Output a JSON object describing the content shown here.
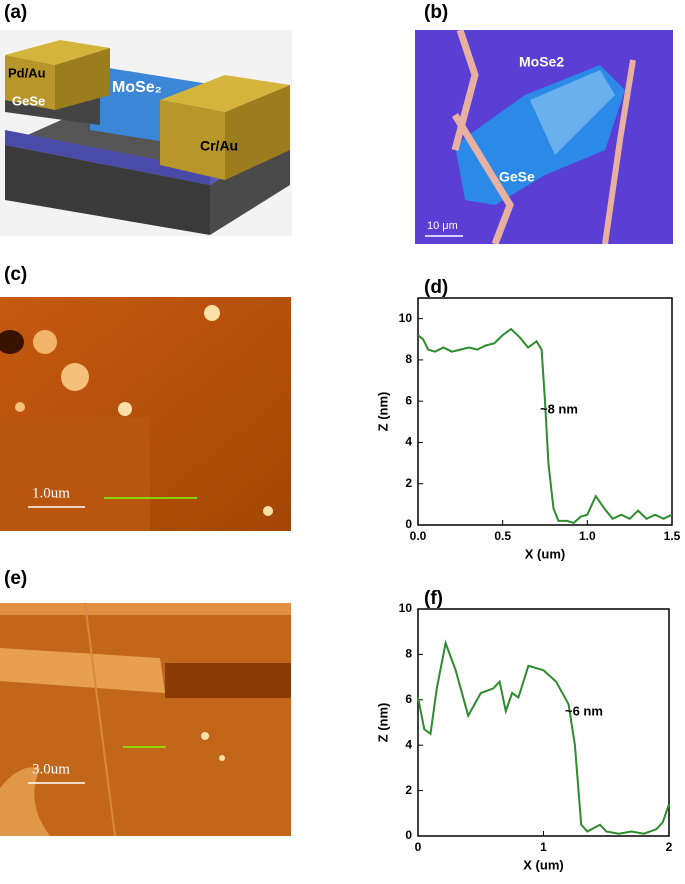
{
  "panels": {
    "a": {
      "label": "(a)",
      "texts": [
        "Pd/Au",
        "GeSe",
        "MoSe₂",
        "Cr/Au"
      ]
    },
    "b": {
      "label": "(b)",
      "texts": [
        "MoSe2",
        "GeSe",
        "10 μm"
      ]
    },
    "c": {
      "label": "(c)",
      "scale": "1.0um"
    },
    "e": {
      "label": "(e)",
      "scale": "3.0um"
    }
  },
  "chart_data": [
    {
      "type": "line",
      "label": "(d)",
      "xlabel": "X (um)",
      "ylabel": "Z (nm)",
      "annotation": "~8 nm",
      "color": "#2e8b2e",
      "x": [
        0,
        0.03,
        0.06,
        0.1,
        0.15,
        0.2,
        0.25,
        0.3,
        0.35,
        0.4,
        0.45,
        0.5,
        0.55,
        0.6,
        0.65,
        0.7,
        0.73,
        0.75,
        0.77,
        0.8,
        0.83,
        0.88,
        0.92,
        0.96,
        1.0,
        1.05,
        1.1,
        1.15,
        1.2,
        1.25,
        1.3,
        1.35,
        1.4,
        1.45,
        1.5
      ],
      "values": [
        9.2,
        9.0,
        8.5,
        8.4,
        8.6,
        8.4,
        8.5,
        8.6,
        8.5,
        8.7,
        8.8,
        9.2,
        9.5,
        9.1,
        8.6,
        8.9,
        8.5,
        6,
        3,
        0.8,
        0.2,
        0.2,
        0.1,
        0.4,
        0.5,
        1.4,
        0.8,
        0.3,
        0.5,
        0.3,
        0.7,
        0.3,
        0.5,
        0.3,
        0.5
      ],
      "xlim": [
        0,
        1.5
      ],
      "xticks": [
        {
          "value": 0,
          "label": "0.0"
        },
        0.5,
        {
          "value": 1,
          "label": "1.0"
        },
        1.5
      ],
      "ylim": [
        0,
        11
      ],
      "yticks": [
        0,
        2,
        4,
        6,
        8,
        10
      ]
    },
    {
      "type": "line",
      "label": "(f)",
      "xlabel": "X (um)",
      "ylabel": "Z (nm)",
      "annotation": "~6 nm",
      "color": "#2e8b2e",
      "x": [
        0,
        0.05,
        0.1,
        0.15,
        0.22,
        0.3,
        0.4,
        0.5,
        0.6,
        0.65,
        0.7,
        0.75,
        0.8,
        0.88,
        1.0,
        1.1,
        1.2,
        1.25,
        1.3,
        1.35,
        1.45,
        1.5,
        1.6,
        1.7,
        1.8,
        1.9,
        1.95,
        2.0
      ],
      "values": [
        6.1,
        4.7,
        4.5,
        6.5,
        8.5,
        7.3,
        5.3,
        6.3,
        6.5,
        6.8,
        5.5,
        6.3,
        6.1,
        7.5,
        7.3,
        6.8,
        5.8,
        4.0,
        0.5,
        0.2,
        0.5,
        0.2,
        0.1,
        0.2,
        0.1,
        0.3,
        0.6,
        1.4
      ],
      "xlim": [
        0,
        2
      ],
      "xticks": [
        0,
        1,
        2
      ],
      "ylim": [
        0,
        10
      ],
      "yticks": [
        0,
        2,
        4,
        6,
        8,
        10
      ]
    }
  ]
}
